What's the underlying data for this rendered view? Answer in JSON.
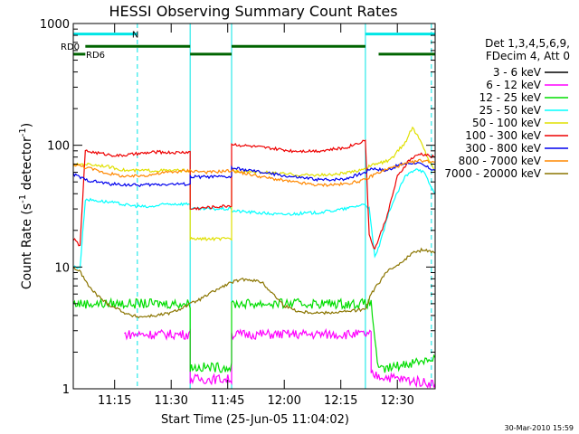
{
  "chart_data": {
    "type": "line",
    "title": "HESSI Observing Summary Count Rates",
    "xlabel": "Start Time (25-Jun-05 11:04:02)",
    "ylabel_main": "Count Rate (s",
    "ylabel_sup": "-1",
    "ylabel_tail": " detector",
    "ylabel_end": ")",
    "y_scale": "log",
    "ylim": [
      1,
      1000
    ],
    "xlim_minutes": [
      0,
      96
    ],
    "y_ticks": [
      {
        "v": 1,
        "label": "1"
      },
      {
        "v": 10,
        "label": "10"
      },
      {
        "v": 100,
        "label": "100"
      },
      {
        "v": 1000,
        "label": "1000"
      }
    ],
    "x_ticks": [
      {
        "t": 10.97,
        "label": "11:15"
      },
      {
        "t": 25.97,
        "label": "11:30"
      },
      {
        "t": 40.97,
        "label": "11:45"
      },
      {
        "t": 55.97,
        "label": "12:00"
      },
      {
        "t": 70.97,
        "label": "12:15"
      },
      {
        "t": 85.97,
        "label": "12:30"
      }
    ],
    "legend_header": [
      "Det 1,3,4,5,6,9,",
      "FDecim 4, Att 0"
    ],
    "footer_date": "30-Mar-2010 15:59",
    "attenuator_bars": {
      "label": "N",
      "color": "#00e6e6",
      "y": 820,
      "segments": [
        [
          0,
          17
        ],
        [
          77.5,
          96
        ]
      ]
    },
    "decimation_bars": {
      "label_top": "RD0",
      "label_bottom": "RD6",
      "color": "#006400",
      "rows": [
        {
          "y": 650,
          "segments": [
            [
              3.2,
              31
            ],
            [
              42,
              77.5
            ]
          ]
        },
        {
          "y": 560,
          "segments": [
            [
              0,
              3.2
            ],
            [
              31,
              42
            ],
            [
              81,
              96
            ]
          ]
        }
      ]
    },
    "cyan_vlines": {
      "solid": [
        0,
        31,
        42,
        77.5
      ],
      "dashed": [
        17,
        95
      ]
    },
    "series": [
      {
        "name": "3 - 6 keV",
        "color": "#000000",
        "points": []
      },
      {
        "name": "6 - 12 keV",
        "color": "#ff00ff",
        "points": [
          [
            13.5,
            2.8
          ],
          [
            31,
            2.8
          ],
          [
            31,
            1.2
          ],
          [
            42,
            1.2
          ],
          [
            42,
            2.8
          ],
          [
            79,
            2.8
          ],
          [
            79,
            1.3
          ],
          [
            96,
            1.1
          ]
        ]
      },
      {
        "name": "12 - 25 keV",
        "color": "#00dd00",
        "points": [
          [
            0,
            5
          ],
          [
            31,
            5
          ],
          [
            31,
            1.5
          ],
          [
            42,
            1.5
          ],
          [
            42,
            5
          ],
          [
            79,
            5
          ],
          [
            81,
            1.4
          ],
          [
            88,
            1.6
          ],
          [
            96,
            1.8
          ]
        ]
      },
      {
        "name": "25 - 50 keV",
        "color": "#00ffff",
        "points": [
          [
            0,
            10
          ],
          [
            1.8,
            10
          ],
          [
            3.2,
            36
          ],
          [
            10,
            34
          ],
          [
            15,
            32
          ],
          [
            20,
            31
          ],
          [
            25,
            33
          ],
          [
            31,
            33
          ],
          [
            31,
            30
          ],
          [
            42,
            30
          ],
          [
            42,
            29
          ],
          [
            55,
            27
          ],
          [
            65,
            28
          ],
          [
            72,
            30
          ],
          [
            77.5,
            33
          ],
          [
            78.5,
            30
          ],
          [
            80,
            12
          ],
          [
            81.5,
            16
          ],
          [
            84,
            30
          ],
          [
            88,
            55
          ],
          [
            91,
            65
          ],
          [
            93,
            60
          ],
          [
            95,
            45
          ],
          [
            96,
            40
          ]
        ]
      },
      {
        "name": "50 - 100 keV",
        "color": "#e0e000",
        "points": [
          [
            0,
            68
          ],
          [
            1.8,
            70
          ],
          [
            3.2,
            70
          ],
          [
            8,
            68
          ],
          [
            14,
            62
          ],
          [
            20,
            62
          ],
          [
            25,
            62
          ],
          [
            31,
            62
          ],
          [
            31,
            17
          ],
          [
            42,
            17
          ],
          [
            42,
            62
          ],
          [
            50,
            60
          ],
          [
            60,
            57
          ],
          [
            68,
            57
          ],
          [
            74,
            60
          ],
          [
            77.5,
            65
          ],
          [
            80,
            70
          ],
          [
            84,
            75
          ],
          [
            88,
            105
          ],
          [
            90,
            140
          ],
          [
            92,
            110
          ],
          [
            94,
            80
          ],
          [
            96,
            60
          ]
        ]
      },
      {
        "name": "100 - 300 keV",
        "color": "#ee0000",
        "points": [
          [
            0,
            17
          ],
          [
            1.8,
            15
          ],
          [
            3.2,
            90
          ],
          [
            8,
            85
          ],
          [
            12,
            82
          ],
          [
            17,
            85
          ],
          [
            22,
            88
          ],
          [
            27,
            87
          ],
          [
            31,
            88
          ],
          [
            31,
            30
          ],
          [
            42,
            32
          ],
          [
            42,
            102
          ],
          [
            50,
            96
          ],
          [
            58,
            90
          ],
          [
            65,
            90
          ],
          [
            72,
            95
          ],
          [
            77.5,
            110
          ],
          [
            78.5,
            18
          ],
          [
            80,
            14
          ],
          [
            83,
            25
          ],
          [
            86,
            55
          ],
          [
            89,
            75
          ],
          [
            92,
            85
          ],
          [
            96,
            80
          ]
        ]
      },
      {
        "name": "300 - 800 keV",
        "color": "#0000ee",
        "points": [
          [
            0,
            58
          ],
          [
            3.2,
            52
          ],
          [
            10,
            48
          ],
          [
            17,
            47
          ],
          [
            25,
            48
          ],
          [
            31,
            48
          ],
          [
            31,
            55
          ],
          [
            42,
            55
          ],
          [
            42,
            65
          ],
          [
            50,
            60
          ],
          [
            58,
            55
          ],
          [
            66,
            52
          ],
          [
            72,
            53
          ],
          [
            77.5,
            60
          ],
          [
            79,
            65
          ],
          [
            83,
            62
          ],
          [
            87,
            70
          ],
          [
            91,
            72
          ],
          [
            96,
            62
          ]
        ]
      },
      {
        "name": "800 - 7000 keV",
        "color": "#ff8800",
        "points": [
          [
            0,
            70
          ],
          [
            3.2,
            66
          ],
          [
            8,
            60
          ],
          [
            14,
            55
          ],
          [
            20,
            57
          ],
          [
            25,
            60
          ],
          [
            31,
            62
          ],
          [
            36,
            60
          ],
          [
            42,
            62
          ],
          [
            50,
            55
          ],
          [
            58,
            50
          ],
          [
            65,
            47
          ],
          [
            72,
            48
          ],
          [
            77.5,
            52
          ],
          [
            80,
            58
          ],
          [
            84,
            65
          ],
          [
            88,
            70
          ],
          [
            92,
            75
          ],
          [
            96,
            73
          ]
        ]
      },
      {
        "name": "7000 - 20000 keV",
        "color": "#8b7500",
        "points": [
          [
            0,
            10
          ],
          [
            2,
            9
          ],
          [
            4,
            7
          ],
          [
            6,
            6
          ],
          [
            9,
            5
          ],
          [
            12,
            4.5
          ],
          [
            15,
            4
          ],
          [
            18,
            3.9
          ],
          [
            22,
            4
          ],
          [
            26,
            4.2
          ],
          [
            30,
            4.8
          ],
          [
            34,
            5.5
          ],
          [
            38,
            6.5
          ],
          [
            42,
            7.5
          ],
          [
            46,
            8
          ],
          [
            50,
            7.5
          ],
          [
            53,
            6
          ],
          [
            56,
            4.8
          ],
          [
            60,
            4.3
          ],
          [
            66,
            4.2
          ],
          [
            72,
            4.3
          ],
          [
            77.5,
            4.5
          ],
          [
            79,
            6
          ],
          [
            83,
            9
          ],
          [
            87,
            11
          ],
          [
            90,
            13
          ],
          [
            93,
            14
          ],
          [
            96,
            13
          ]
        ]
      }
    ]
  }
}
